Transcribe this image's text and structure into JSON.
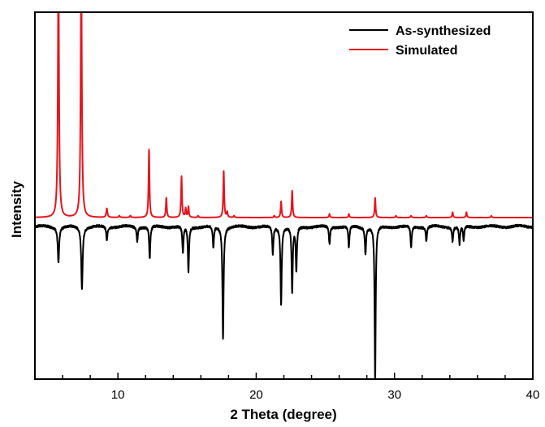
{
  "chart_data": {
    "type": "line",
    "xlabel": "2 Theta (degree)",
    "ylabel": "Intensity",
    "xlim": [
      4,
      40
    ],
    "x_ticks": [
      10,
      20,
      30,
      40
    ],
    "x_minor_step": 2,
    "y_ticks_shown": false,
    "grid": false,
    "legend_position": "top-right",
    "series": [
      {
        "name": "As-synthesized",
        "color": "#000000",
        "baseline": -0.05,
        "noise": 0.012,
        "direction": -1,
        "peaks": [
          [
            5.7,
            0.2,
            0.06
          ],
          [
            7.4,
            0.35,
            0.06
          ],
          [
            9.2,
            0.08,
            0.05
          ],
          [
            11.4,
            0.08,
            0.05
          ],
          [
            12.3,
            0.18,
            0.05
          ],
          [
            14.7,
            0.15,
            0.05
          ],
          [
            15.1,
            0.25,
            0.05
          ],
          [
            16.9,
            0.12,
            0.05
          ],
          [
            17.6,
            0.62,
            0.05
          ],
          [
            21.2,
            0.15,
            0.05
          ],
          [
            21.8,
            0.43,
            0.05
          ],
          [
            22.6,
            0.37,
            0.05
          ],
          [
            22.9,
            0.25,
            0.05
          ],
          [
            25.3,
            0.1,
            0.05
          ],
          [
            26.7,
            0.12,
            0.05
          ],
          [
            27.9,
            0.15,
            0.05
          ],
          [
            28.6,
            0.88,
            0.045
          ],
          [
            31.2,
            0.12,
            0.05
          ],
          [
            32.3,
            0.08,
            0.05
          ],
          [
            34.2,
            0.08,
            0.05
          ],
          [
            34.7,
            0.1,
            0.05
          ],
          [
            35.0,
            0.08,
            0.05
          ]
        ]
      },
      {
        "name": "Simulated",
        "color": "#e8141c",
        "baseline": 0.0,
        "noise": 0.0,
        "direction": 1,
        "peaks": [
          [
            5.7,
            1.4,
            0.05
          ],
          [
            7.35,
            1.4,
            0.05
          ],
          [
            9.2,
            0.05,
            0.05
          ],
          [
            10.1,
            0.01,
            0.05
          ],
          [
            10.9,
            0.01,
            0.05
          ],
          [
            12.25,
            0.38,
            0.04
          ],
          [
            13.5,
            0.11,
            0.04
          ],
          [
            14.6,
            0.23,
            0.04
          ],
          [
            14.9,
            0.05,
            0.04
          ],
          [
            15.1,
            0.06,
            0.04
          ],
          [
            15.8,
            0.01,
            0.04
          ],
          [
            17.65,
            0.26,
            0.04
          ],
          [
            17.9,
            0.03,
            0.04
          ],
          [
            18.4,
            0.01,
            0.04
          ],
          [
            21.3,
            0.01,
            0.04
          ],
          [
            21.8,
            0.09,
            0.04
          ],
          [
            22.6,
            0.15,
            0.04
          ],
          [
            25.3,
            0.02,
            0.04
          ],
          [
            26.7,
            0.02,
            0.04
          ],
          [
            28.6,
            0.11,
            0.04
          ],
          [
            30.1,
            0.01,
            0.04
          ],
          [
            31.2,
            0.01,
            0.04
          ],
          [
            32.3,
            0.01,
            0.04
          ],
          [
            34.2,
            0.03,
            0.04
          ],
          [
            35.2,
            0.03,
            0.04
          ],
          [
            37.0,
            0.01,
            0.04
          ]
        ]
      }
    ]
  }
}
